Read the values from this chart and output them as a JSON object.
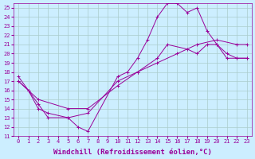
{
  "background_color": "#cceeff",
  "grid_color": "#aacccc",
  "line_color": "#990099",
  "xlabel": "Windchill (Refroidissement éolien,°C)",
  "xlabel_fontsize": 6.5,
  "ylim": [
    11,
    25.5
  ],
  "xlim": [
    -0.5,
    23.5
  ],
  "yticks": [
    11,
    12,
    13,
    14,
    15,
    16,
    17,
    18,
    19,
    20,
    21,
    22,
    23,
    24,
    25
  ],
  "xticks": [
    0,
    1,
    2,
    3,
    4,
    5,
    6,
    7,
    8,
    9,
    10,
    11,
    12,
    13,
    14,
    15,
    16,
    17,
    18,
    19,
    20,
    21,
    22,
    23
  ],
  "line1_x": [
    0,
    1,
    2,
    3,
    5,
    6,
    7,
    10,
    11,
    12,
    13,
    14,
    15,
    16,
    17,
    18,
    19,
    20,
    21,
    22,
    23
  ],
  "line1_y": [
    17.5,
    16.0,
    14.0,
    13.5,
    13.0,
    12.0,
    11.5,
    17.5,
    18.0,
    19.5,
    21.5,
    24.0,
    25.5,
    25.5,
    24.5,
    25.0,
    22.5,
    21.0,
    19.5,
    19.5,
    19.5
  ],
  "line2_x": [
    0,
    1,
    2,
    3,
    5,
    7,
    10,
    12,
    14,
    15,
    17,
    18,
    19,
    20,
    21,
    22,
    23
  ],
  "line2_y": [
    17.0,
    16.0,
    14.5,
    13.0,
    13.0,
    13.5,
    17.0,
    18.0,
    19.5,
    21.0,
    20.5,
    20.0,
    21.0,
    21.0,
    20.0,
    19.5,
    19.5
  ],
  "line3_x": [
    0,
    2,
    5,
    7,
    10,
    12,
    14,
    16,
    18,
    20,
    22,
    23
  ],
  "line3_y": [
    17.0,
    15.0,
    14.0,
    14.0,
    16.5,
    18.0,
    19.0,
    20.0,
    21.0,
    21.5,
    21.0,
    21.0
  ]
}
